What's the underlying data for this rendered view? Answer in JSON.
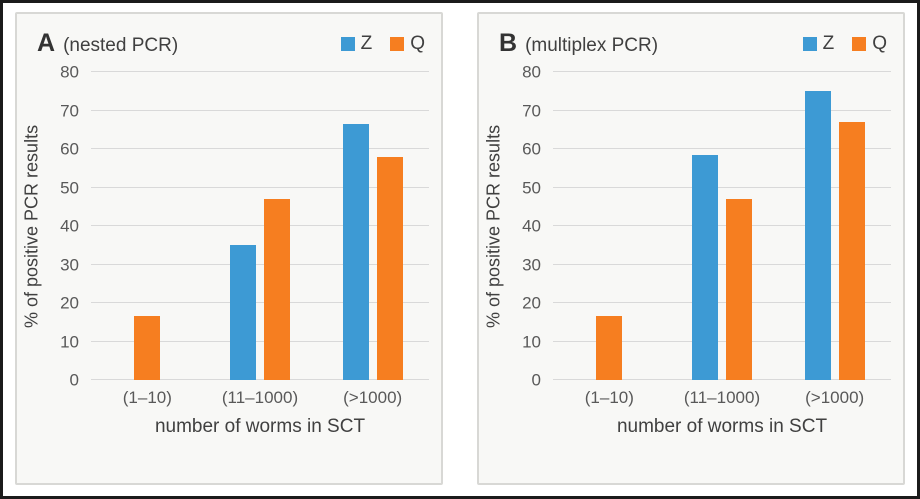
{
  "figure": {
    "outer_border_color": "#1b1b1b",
    "panel_background": "#f8f8f6",
    "panel_border_color": "#d8d8d5",
    "gridline_color": "#d9d9d9",
    "title_text_color": "#333333",
    "tick_text_color": "#595959"
  },
  "chart_data": [
    {
      "type": "bar",
      "panel_label": "A",
      "subtitle": "(nested PCR)",
      "title": "A (nested PCR)",
      "categories": [
        "(1–10)",
        "(11–1000)",
        "(>1000)"
      ],
      "series": [
        {
          "name": "Z",
          "color": "#3D9AD4",
          "values": [
            0,
            35,
            66.5
          ]
        },
        {
          "name": "Q",
          "color": "#F67E20",
          "values": [
            16.5,
            47,
            58
          ]
        }
      ],
      "xlabel": "number of worms in SCT",
      "ylabel": "% of positive PCR results",
      "ylim": [
        0,
        80
      ],
      "yticks": [
        0,
        10,
        20,
        30,
        40,
        50,
        60,
        70,
        80
      ],
      "grid": true,
      "legend_position": "top-right",
      "legend": [
        {
          "label": "Z",
          "color": "#3D9AD4"
        },
        {
          "label": "Q",
          "color": "#F67E20"
        }
      ]
    },
    {
      "type": "bar",
      "panel_label": "B",
      "subtitle": "(multiplex PCR)",
      "title": "B (multiplex PCR)",
      "categories": [
        "(1–10)",
        "(11–1000)",
        "(>1000)"
      ],
      "series": [
        {
          "name": "Z",
          "color": "#3D9AD4",
          "values": [
            0,
            58.5,
            75
          ]
        },
        {
          "name": "Q",
          "color": "#F67E20",
          "values": [
            16.5,
            47,
            67
          ]
        }
      ],
      "xlabel": "number of worms in SCT",
      "ylabel": "% of positive PCR results",
      "ylim": [
        0,
        80
      ],
      "yticks": [
        0,
        10,
        20,
        30,
        40,
        50,
        60,
        70,
        80
      ],
      "grid": true,
      "legend_position": "top-right",
      "legend": [
        {
          "label": "Z",
          "color": "#3D9AD4"
        },
        {
          "label": "Q",
          "color": "#F67E20"
        }
      ]
    }
  ]
}
